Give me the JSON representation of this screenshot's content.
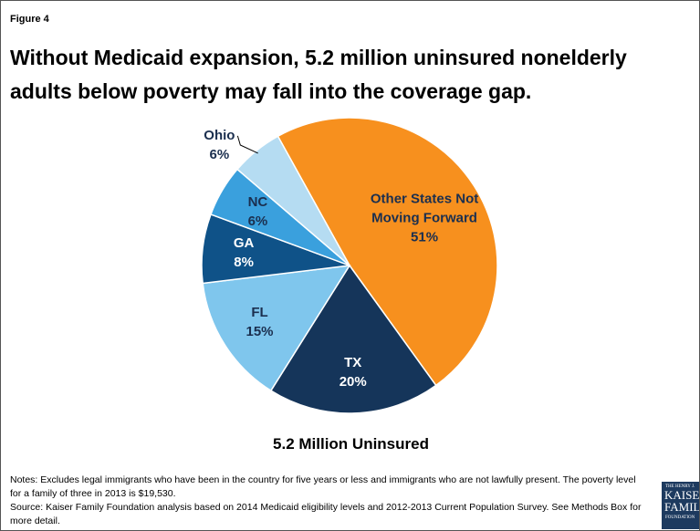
{
  "chart_data": {
    "type": "pie",
    "figure_label": "Figure 4",
    "title": "Without Medicaid expansion, 5.2 million uninsured nonelderly adults below poverty may fall into the coverage gap.",
    "categories": [
      "Other States Not Moving Forward",
      "TX",
      "FL",
      "GA",
      "NC",
      "Ohio"
    ],
    "values": [
      51,
      20,
      15,
      8,
      6,
      6
    ],
    "value_labels": [
      "51%",
      "20%",
      "15%",
      "8%",
      "6%",
      "6%"
    ],
    "colors": [
      "#f7901e",
      "#15355a",
      "#7fc6ed",
      "#0f5288",
      "#3aa0dd",
      "#b5dcf2"
    ],
    "caption": "5.2 Million Uninsured",
    "notes": "Notes: Excludes legal immigrants who have been in the country for five years or less and immigrants who are not lawfully present. The poverty level for a family of three in 2013 is $19,530.",
    "source": "Source: Kaiser Family Foundation analysis based on 2014 Medicaid eligibility levels and 2012-2013 Current Population Survey. See Methods Box for more detail."
  },
  "logo": {
    "small": "THE HENRY J.",
    "line1": "KAISER",
    "line2": "FAMILY",
    "line3": "FOUNDATION"
  }
}
